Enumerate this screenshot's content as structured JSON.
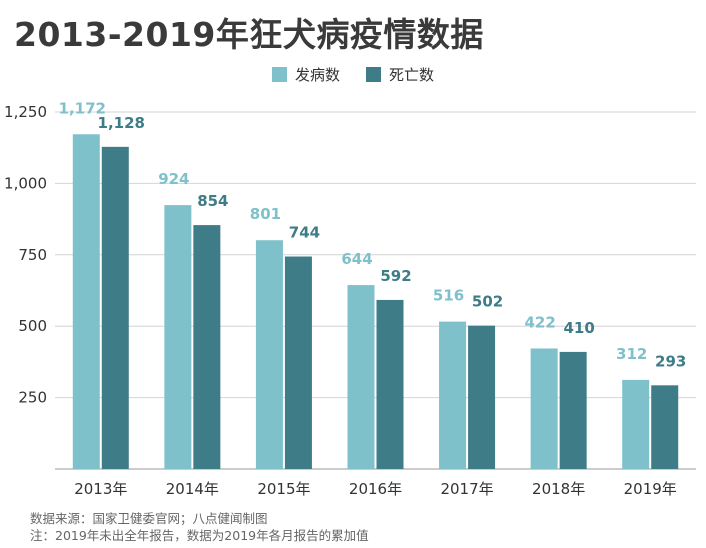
{
  "chart_data": {
    "type": "bar",
    "title": "2013-2019年狂犬病疫情数据",
    "categories": [
      "2013年",
      "2014年",
      "2015年",
      "2016年",
      "2017年",
      "2018年",
      "2019年"
    ],
    "series": [
      {
        "name": "发病数",
        "color": "#7ec1cb",
        "values": [
          1172,
          924,
          801,
          644,
          516,
          422,
          312
        ],
        "labels": [
          "1,172",
          "924",
          "801",
          "644",
          "516",
          "422",
          "312"
        ]
      },
      {
        "name": "死亡数",
        "color": "#3e7c88",
        "values": [
          1128,
          854,
          744,
          592,
          502,
          410,
          293
        ],
        "labels": [
          "1,128",
          "854",
          "744",
          "592",
          "502",
          "410",
          "293"
        ]
      }
    ],
    "ylim": [
      0,
      1250
    ],
    "yticks": [
      250,
      500,
      750,
      1000,
      1250
    ],
    "ytick_labels": [
      "250",
      "500",
      "750",
      "1,000",
      "1,250"
    ],
    "grid": true,
    "legend_position": "top-center"
  },
  "footnotes": {
    "source": "数据来源：国家卫健委官网；八点健闻制图",
    "note": "注：2019年未出全年报告，数据为2019年各月报告的累加值"
  }
}
